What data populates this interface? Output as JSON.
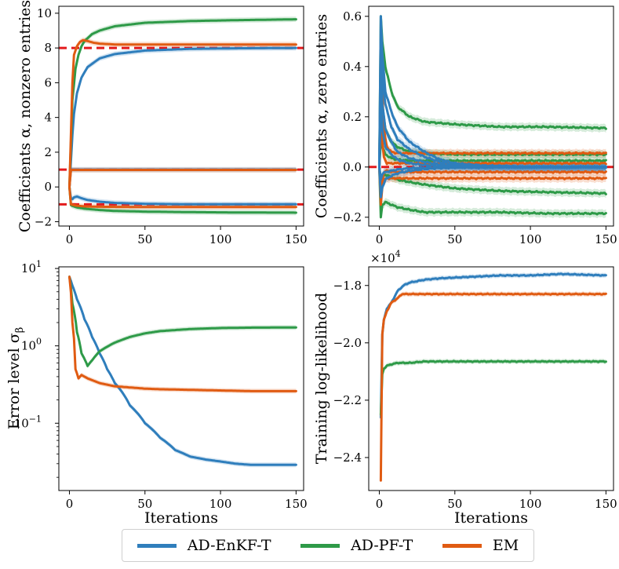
{
  "colors": {
    "enkf": "#2f7ebc",
    "pf": "#2e9a48",
    "em": "#e05b12",
    "ref": "#e31a1c"
  },
  "legend": [
    {
      "key": "enkf",
      "label": "AD-EnKF-T"
    },
    {
      "key": "pf",
      "label": "AD-PF-T"
    },
    {
      "key": "em",
      "label": "EM"
    }
  ],
  "chart_data": [
    {
      "type": "line",
      "ylabel": "Coefficients α, nonzero entries",
      "xlabel": "",
      "xlim": [
        -7,
        155
      ],
      "ylim": [
        -2.25,
        10.4
      ],
      "xticks": [
        0,
        50,
        100,
        150
      ],
      "yticks": [
        -2,
        0,
        2,
        4,
        6,
        8,
        10
      ],
      "reference_lines": [
        8,
        1,
        -1
      ],
      "series": [
        {
          "name": "AD-EnKF-T",
          "key": "enkf",
          "x": [
            0,
            1,
            2,
            3,
            5,
            8,
            12,
            20,
            30,
            50,
            80,
            110,
            150
          ],
          "values": [
            0,
            1.0,
            1.0,
            1.0,
            1.0,
            1.0,
            1.0,
            1.0,
            1.0,
            1.0,
            1.0,
            1.0,
            1.0
          ]
        },
        {
          "name": "AD-EnKF-T",
          "key": "enkf",
          "x": [
            0,
            1,
            2,
            3,
            5,
            8,
            12,
            20,
            30,
            50,
            80,
            110,
            150
          ],
          "values": [
            0,
            -0.65,
            -0.7,
            -0.6,
            -0.55,
            -0.65,
            -0.75,
            -0.85,
            -0.92,
            -0.97,
            -1.0,
            -1.0,
            -1.0
          ]
        },
        {
          "name": "AD-EnKF-T",
          "key": "enkf",
          "x": [
            0,
            1,
            2,
            3,
            5,
            8,
            12,
            20,
            30,
            50,
            80,
            110,
            150
          ],
          "values": [
            0,
            1.5,
            3.0,
            4.2,
            5.4,
            6.3,
            6.9,
            7.4,
            7.65,
            7.85,
            7.95,
            7.98,
            8.0
          ]
        },
        {
          "name": "AD-PF-T",
          "key": "pf",
          "x": [
            0,
            1,
            2,
            4,
            6,
            8,
            10,
            15,
            20,
            30,
            50,
            80,
            110,
            150
          ],
          "values": [
            0,
            2.5,
            5.0,
            6.8,
            7.6,
            8.1,
            8.4,
            8.8,
            9.0,
            9.25,
            9.45,
            9.55,
            9.6,
            9.65
          ]
        },
        {
          "name": "AD-PF-T",
          "key": "pf",
          "x": [
            0,
            1,
            3,
            5,
            10,
            20,
            30,
            50,
            80,
            110,
            150
          ],
          "values": [
            0,
            -1.05,
            -1.12,
            -1.18,
            -1.25,
            -1.33,
            -1.38,
            -1.42,
            -1.45,
            -1.47,
            -1.48
          ]
        },
        {
          "name": "EM",
          "key": "em",
          "x": [
            0,
            1,
            2,
            3,
            5,
            7,
            9,
            12,
            16,
            20,
            30,
            50,
            80,
            110,
            150
          ],
          "values": [
            0,
            3.0,
            6.0,
            7.6,
            8.1,
            8.35,
            8.45,
            8.4,
            8.3,
            8.25,
            8.2,
            8.2,
            8.2,
            8.2,
            8.2
          ]
        },
        {
          "name": "EM",
          "key": "em",
          "x": [
            0,
            1,
            3,
            5,
            10,
            20,
            40,
            80,
            150
          ],
          "values": [
            0,
            -1.0,
            -1.05,
            -1.08,
            -1.12,
            -1.14,
            -1.15,
            -1.15,
            -1.15
          ]
        },
        {
          "name": "EM",
          "key": "em",
          "x": [
            0,
            1,
            3,
            5,
            10,
            20,
            40,
            80,
            150
          ],
          "values": [
            0,
            0.98,
            0.98,
            0.98,
            0.98,
            0.98,
            0.98,
            0.98,
            0.98
          ]
        }
      ]
    },
    {
      "type": "line",
      "ylabel": "Coefficients α, zero entries",
      "xlabel": "",
      "xlim": [
        -7,
        155
      ],
      "ylim": [
        -0.235,
        0.64
      ],
      "xticks": [
        0,
        50,
        100,
        150
      ],
      "yticks": [
        -0.2,
        0.0,
        0.2,
        0.4,
        0.6
      ],
      "reference_lines": [
        0
      ],
      "series": [
        {
          "name": "AD-PF-T",
          "key": "pf",
          "x": [
            0,
            1,
            2,
            4,
            8,
            12,
            20,
            30,
            50,
            80,
            110,
            150
          ],
          "values": [
            0,
            0.6,
            0.5,
            0.4,
            0.3,
            0.24,
            0.2,
            0.18,
            0.17,
            0.16,
            0.16,
            0.155
          ]
        },
        {
          "name": "AD-PF-T",
          "key": "pf",
          "x": [
            0,
            1,
            2,
            4,
            8,
            12,
            20,
            30,
            50,
            80,
            110,
            150
          ],
          "values": [
            0,
            0.3,
            0.25,
            0.15,
            0.1,
            0.08,
            0.06,
            0.055,
            0.05,
            0.05,
            0.05,
            0.05
          ]
        },
        {
          "name": "AD-PF-T",
          "key": "pf",
          "x": [
            0,
            1,
            2,
            4,
            8,
            12,
            20,
            30,
            50,
            80,
            110,
            150
          ],
          "values": [
            0,
            0.1,
            0.08,
            0.05,
            0.035,
            0.03,
            0.025,
            0.025,
            0.025,
            0.025,
            0.025,
            0.025
          ]
        },
        {
          "name": "AD-PF-T",
          "key": "pf",
          "x": [
            0,
            1,
            2,
            4,
            8,
            12,
            20,
            30,
            50,
            80,
            110,
            150
          ],
          "values": [
            0,
            -0.05,
            -0.04,
            -0.03,
            -0.04,
            -0.05,
            -0.06,
            -0.07,
            -0.085,
            -0.095,
            -0.1,
            -0.105
          ]
        },
        {
          "name": "AD-PF-T",
          "key": "pf",
          "x": [
            0,
            1,
            2,
            4,
            8,
            12,
            20,
            30,
            50,
            80,
            110,
            150
          ],
          "values": [
            0,
            -0.2,
            -0.15,
            -0.14,
            -0.15,
            -0.16,
            -0.17,
            -0.18,
            -0.18,
            -0.18,
            -0.185,
            -0.185
          ]
        },
        {
          "name": "EM",
          "key": "em",
          "x": [
            0,
            1,
            2,
            3,
            5,
            8,
            12,
            20,
            40,
            80,
            150
          ],
          "values": [
            0,
            0.45,
            0.3,
            0.15,
            0.08,
            0.06,
            0.055,
            0.055,
            0.055,
            0.055,
            0.055
          ]
        },
        {
          "name": "EM",
          "key": "em",
          "x": [
            0,
            1,
            2,
            3,
            5,
            8,
            12,
            20,
            40,
            80,
            150
          ],
          "values": [
            0,
            0.2,
            0.1,
            0.04,
            0.015,
            0.015,
            0.015,
            0.015,
            0.015,
            0.015,
            0.015
          ]
        },
        {
          "name": "EM",
          "key": "em",
          "x": [
            0,
            1,
            2,
            3,
            5,
            8,
            12,
            20,
            40,
            80,
            150
          ],
          "values": [
            0,
            -0.1,
            -0.05,
            -0.02,
            -0.015,
            -0.018,
            -0.02,
            -0.02,
            -0.02,
            -0.02,
            -0.02
          ]
        },
        {
          "name": "EM",
          "key": "em",
          "x": [
            0,
            1,
            2,
            3,
            5,
            8,
            12,
            20,
            40,
            80,
            150
          ],
          "values": [
            0,
            -0.15,
            -0.08,
            -0.05,
            -0.045,
            -0.045,
            -0.045,
            -0.045,
            -0.045,
            -0.045,
            -0.045
          ]
        },
        {
          "name": "AD-EnKF-T",
          "key": "enkf",
          "x": [
            0,
            1,
            2,
            4,
            8,
            12,
            20,
            30,
            40,
            50,
            70,
            100,
            150
          ],
          "values": [
            0,
            0.6,
            0.45,
            0.3,
            0.22,
            0.16,
            0.1,
            0.06,
            0.03,
            0.015,
            0.005,
            0.0,
            0.0
          ]
        },
        {
          "name": "AD-EnKF-T",
          "key": "enkf",
          "x": [
            0,
            1,
            2,
            4,
            8,
            12,
            20,
            30,
            40,
            50,
            70,
            100,
            150
          ],
          "values": [
            0,
            0.5,
            0.35,
            0.25,
            0.16,
            0.11,
            0.07,
            0.04,
            0.02,
            0.01,
            0.003,
            0.0,
            0.0
          ]
        },
        {
          "name": "AD-EnKF-T",
          "key": "enkf",
          "x": [
            0,
            1,
            2,
            4,
            8,
            12,
            20,
            30,
            40,
            50,
            70,
            100,
            150
          ],
          "values": [
            0,
            0.35,
            0.25,
            0.15,
            0.1,
            0.06,
            0.035,
            0.02,
            0.01,
            0.005,
            0.002,
            0.0,
            0.0
          ]
        },
        {
          "name": "AD-EnKF-T",
          "key": "enkf",
          "x": [
            0,
            1,
            2,
            4,
            8,
            12,
            20,
            30,
            40,
            50,
            70,
            100,
            150
          ],
          "values": [
            0,
            0.25,
            0.15,
            0.08,
            0.05,
            0.03,
            0.015,
            0.008,
            0.004,
            0.002,
            0.001,
            0.0,
            0.0
          ]
        },
        {
          "name": "AD-EnKF-T",
          "key": "enkf",
          "x": [
            0,
            1,
            2,
            4,
            8,
            12,
            20,
            30,
            40,
            50,
            70,
            100,
            150
          ],
          "values": [
            0,
            -0.12,
            -0.08,
            -0.05,
            -0.035,
            -0.025,
            -0.015,
            -0.008,
            -0.004,
            -0.002,
            -0.001,
            0.0,
            0.0
          ]
        },
        {
          "name": "AD-EnKF-T",
          "key": "enkf",
          "x": [
            0,
            1,
            2,
            4,
            8,
            12,
            20,
            30,
            40,
            50,
            70,
            100,
            150
          ],
          "values": [
            0,
            -0.05,
            -0.03,
            -0.02,
            -0.015,
            -0.01,
            -0.005,
            -0.003,
            -0.002,
            -0.001,
            0.0,
            0.0,
            0.0
          ]
        }
      ]
    },
    {
      "type": "line",
      "scale": "log",
      "ylabel": "Error level σ",
      "ylabel_sub": "β",
      "xlabel": "Iterations",
      "xlim": [
        -7,
        155
      ],
      "ylim": [
        0.0135,
        10.5
      ],
      "xticks": [
        0,
        50,
        100,
        150
      ],
      "yticks": [
        0.1,
        1,
        10
      ],
      "ytick_labels": [
        "10",
        "10",
        "10"
      ],
      "ytick_exponents": [
        "−1",
        "0",
        "1"
      ],
      "series": [
        {
          "name": "AD-EnKF-T",
          "key": "enkf",
          "x": [
            0,
            2,
            5,
            10,
            15,
            20,
            25,
            30,
            40,
            50,
            60,
            70,
            80,
            90,
            100,
            110,
            120,
            130,
            140,
            150
          ],
          "values": [
            7.8,
            6.0,
            4.0,
            2.2,
            1.3,
            0.8,
            0.5,
            0.33,
            0.17,
            0.1,
            0.065,
            0.045,
            0.037,
            0.034,
            0.032,
            0.03,
            0.029,
            0.029,
            0.029,
            0.029
          ]
        },
        {
          "name": "AD-PF-T",
          "key": "pf",
          "x": [
            0,
            2,
            5,
            8,
            12,
            15,
            20,
            30,
            40,
            50,
            60,
            80,
            100,
            120,
            150
          ],
          "values": [
            7.8,
            3.5,
            1.5,
            0.8,
            0.55,
            0.65,
            0.85,
            1.1,
            1.3,
            1.45,
            1.55,
            1.65,
            1.7,
            1.72,
            1.73
          ]
        },
        {
          "name": "EM",
          "key": "em",
          "x": [
            0,
            2,
            4,
            6,
            8,
            10,
            12,
            15,
            20,
            30,
            40,
            50,
            60,
            80,
            100,
            120,
            150
          ],
          "values": [
            7.8,
            2.0,
            0.5,
            0.38,
            0.42,
            0.4,
            0.38,
            0.36,
            0.33,
            0.3,
            0.29,
            0.28,
            0.275,
            0.27,
            0.265,
            0.26,
            0.26
          ]
        }
      ]
    },
    {
      "type": "line",
      "ylabel": "Training log-likelihood",
      "xlabel": "Iterations",
      "offset_label": "×10",
      "offset_exponent": "4",
      "xlim": [
        -7,
        155
      ],
      "ylim": [
        -2.515,
        -1.735
      ],
      "xticks": [
        0,
        50,
        100,
        150
      ],
      "yticks": [
        -2.4,
        -2.2,
        -2.0,
        -1.8
      ],
      "ytick_labels": [
        "−2.4",
        "−2.2",
        "−2.0",
        "−1.8"
      ],
      "series": [
        {
          "name": "AD-EnKF-T",
          "key": "enkf",
          "x": [
            1,
            2,
            3,
            5,
            8,
            12,
            16,
            20,
            30,
            40,
            60,
            80,
            100,
            120,
            150
          ],
          "values": [
            -2.26,
            -1.97,
            -1.92,
            -1.88,
            -1.86,
            -1.82,
            -1.8,
            -1.79,
            -1.78,
            -1.775,
            -1.77,
            -1.765,
            -1.765,
            -1.76,
            -1.765
          ]
        },
        {
          "name": "AD-PF-T",
          "key": "pf",
          "x": [
            1,
            2,
            3,
            5,
            8,
            12,
            20,
            30,
            50,
            80,
            110,
            150
          ],
          "values": [
            -2.25,
            -2.11,
            -2.09,
            -2.08,
            -2.075,
            -2.07,
            -2.07,
            -2.065,
            -2.065,
            -2.065,
            -2.065,
            -2.065
          ]
        },
        {
          "name": "EM",
          "key": "em",
          "x": [
            1,
            1.5,
            2,
            3,
            5,
            8,
            12,
            15,
            20,
            30,
            50,
            80,
            110,
            150
          ],
          "values": [
            -2.48,
            -2.2,
            -1.97,
            -1.92,
            -1.89,
            -1.86,
            -1.845,
            -1.83,
            -1.83,
            -1.83,
            -1.83,
            -1.83,
            -1.83,
            -1.83
          ]
        }
      ]
    }
  ]
}
